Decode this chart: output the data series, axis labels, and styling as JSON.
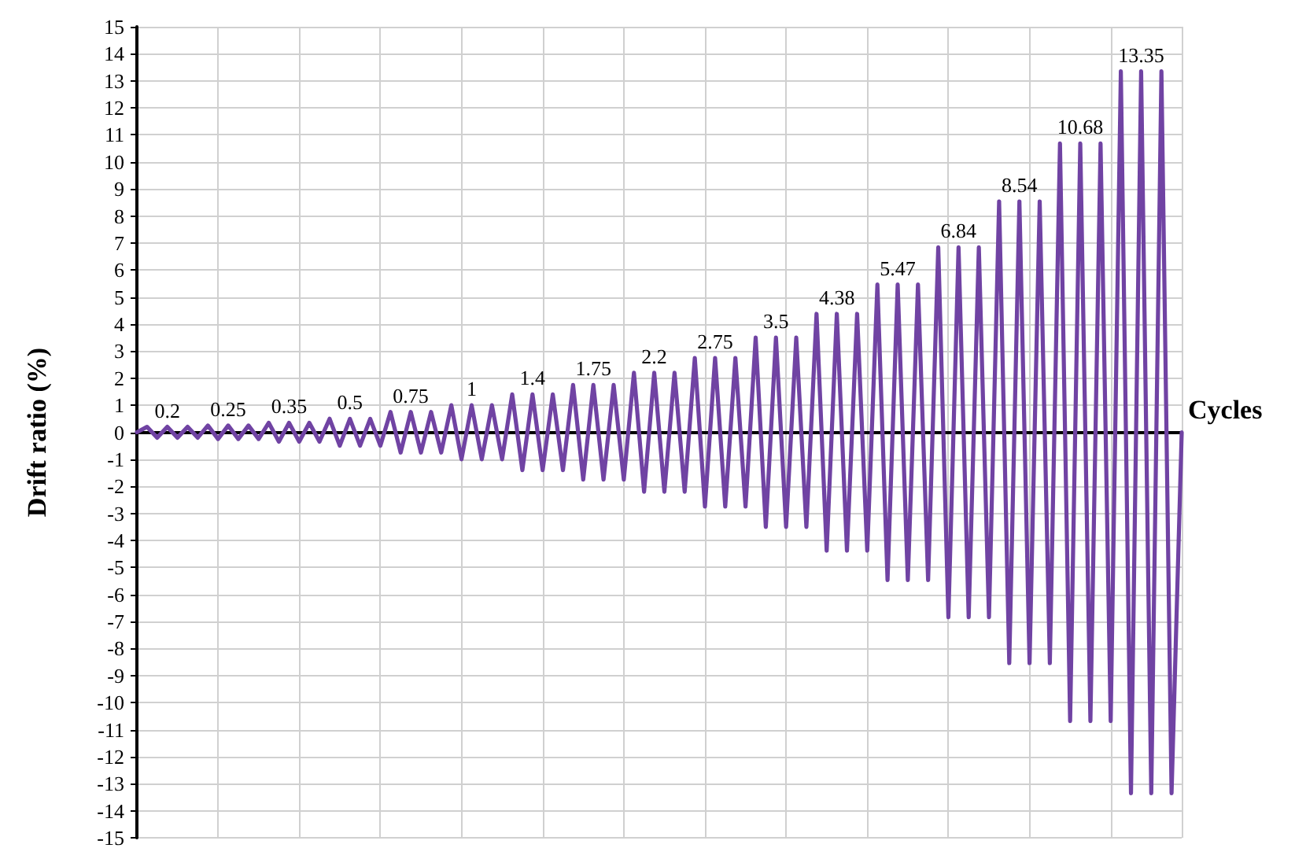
{
  "chart_data": {
    "type": "line",
    "xlabel": "Cycles",
    "ylabel": "Drift ratio (%)",
    "categories": [
      null,
      null,
      null,
      null,
      null,
      null,
      null,
      null,
      null,
      null,
      null,
      null,
      null,
      null,
      null,
      null,
      null,
      null,
      null,
      null,
      null,
      null,
      null,
      null,
      null,
      null,
      null,
      null,
      null,
      null,
      null,
      null,
      null,
      null,
      null,
      null,
      null,
      null,
      null,
      null,
      null,
      null,
      null,
      null,
      null,
      null,
      null,
      null,
      null,
      null,
      null,
      null,
      null,
      null,
      null,
      null,
      null,
      null,
      null,
      null,
      null,
      null,
      null,
      null,
      null,
      null,
      null,
      null,
      null,
      null,
      null,
      null,
      null,
      null,
      null,
      null,
      null,
      null,
      null,
      null,
      null,
      null,
      null,
      null,
      null,
      null,
      null,
      null,
      null,
      null,
      null,
      null,
      null,
      null,
      null,
      null,
      null,
      null,
      null,
      null,
      null,
      null,
      null,
      null
    ],
    "series": [
      {
        "color": "#7043a3",
        "values": [
          0,
          0.2,
          -0.2,
          0.2,
          -0.2,
          0.2,
          -0.2,
          0.25,
          -0.25,
          0.25,
          -0.25,
          0.25,
          -0.25,
          0.35,
          -0.35,
          0.35,
          -0.35,
          0.35,
          -0.35,
          0.5,
          -0.5,
          0.5,
          -0.5,
          0.5,
          -0.5,
          0.75,
          -0.75,
          0.75,
          -0.75,
          0.75,
          -0.75,
          1,
          -1,
          1,
          -1,
          1,
          -1,
          1.4,
          -1.4,
          1.4,
          -1.4,
          1.4,
          -1.4,
          1.75,
          -1.75,
          1.75,
          -1.75,
          1.75,
          -1.75,
          2.2,
          -2.2,
          2.2,
          -2.2,
          2.2,
          -2.2,
          2.75,
          -2.75,
          2.75,
          -2.75,
          2.75,
          -2.75,
          3.5,
          -3.5,
          3.5,
          -3.5,
          3.5,
          -3.5,
          4.38,
          -4.38,
          4.38,
          -4.38,
          4.38,
          -4.38,
          5.47,
          -5.47,
          5.47,
          -5.47,
          5.47,
          -5.47,
          6.84,
          -6.84,
          6.84,
          -6.84,
          6.84,
          -6.84,
          8.54,
          -8.54,
          8.54,
          -8.54,
          8.54,
          -8.54,
          10.68,
          -10.68,
          10.68,
          -10.68,
          10.68,
          -10.68,
          13.35,
          -13.35,
          13.35,
          -13.35,
          13.35,
          -13.35,
          0
        ],
        "value_labels": [
          null,
          null,
          null,
          "0.2",
          null,
          null,
          null,
          null,
          null,
          "0.25",
          null,
          null,
          null,
          null,
          null,
          "0.35",
          null,
          null,
          null,
          null,
          null,
          "0.5",
          null,
          null,
          null,
          null,
          null,
          "0.75",
          null,
          null,
          null,
          null,
          null,
          "1",
          null,
          null,
          null,
          null,
          null,
          "1.4",
          null,
          null,
          null,
          null,
          null,
          "1.75",
          null,
          null,
          null,
          null,
          null,
          "2.2",
          null,
          null,
          null,
          null,
          null,
          "2.75",
          null,
          null,
          null,
          null,
          null,
          "3.5",
          null,
          null,
          null,
          null,
          null,
          "4.38",
          null,
          null,
          null,
          null,
          null,
          "5.47",
          null,
          null,
          null,
          null,
          null,
          "6.84",
          null,
          null,
          null,
          null,
          null,
          "8.54",
          null,
          null,
          null,
          null,
          null,
          "10.68",
          null,
          null,
          null,
          null,
          null,
          "13.35",
          null,
          null,
          null,
          null
        ]
      }
    ],
    "ylim": [
      -15,
      15
    ],
    "yticks": [
      -15,
      -14,
      -13,
      -12,
      -11,
      -10,
      -9,
      -8,
      -7,
      -6,
      -5,
      -4,
      -3,
      -2,
      -1,
      0,
      1,
      2,
      3,
      4,
      5,
      6,
      7,
      8,
      9,
      10,
      11,
      12,
      13,
      14,
      15
    ],
    "grid": true,
    "marker": "none",
    "line_style": "solid",
    "tick_labels": "y"
  }
}
